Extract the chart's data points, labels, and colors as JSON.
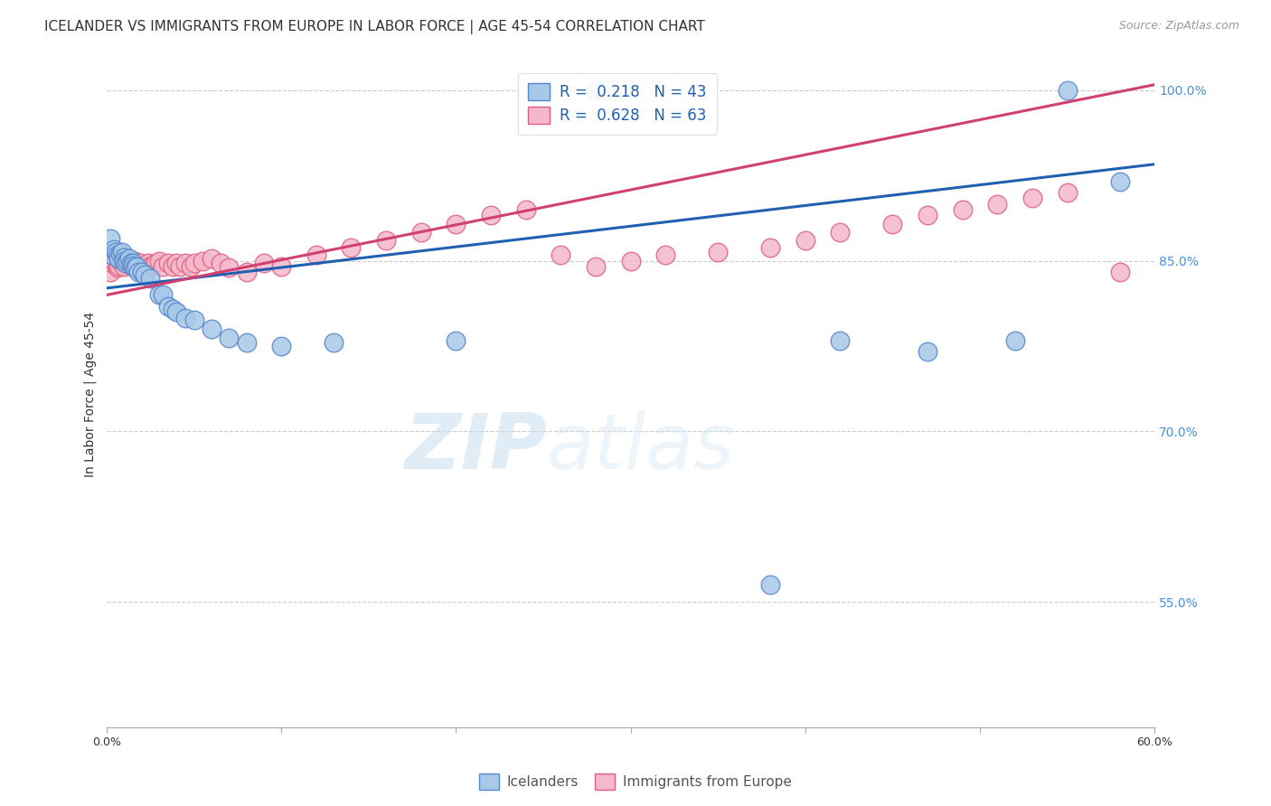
{
  "title": "ICELANDER VS IMMIGRANTS FROM EUROPE IN LABOR FORCE | AGE 45-54 CORRELATION CHART",
  "source": "Source: ZipAtlas.com",
  "ylabel": "In Labor Force | Age 45-54",
  "x_min": 0.0,
  "x_max": 0.6,
  "y_min": 0.44,
  "y_max": 1.025,
  "yticks": [
    0.55,
    0.7,
    0.85,
    1.0
  ],
  "ytick_labels": [
    "55.0%",
    "70.0%",
    "85.0%",
    "100.0%"
  ],
  "xticks": [
    0.0,
    0.1,
    0.2,
    0.3,
    0.4,
    0.5,
    0.6
  ],
  "xtick_labels": [
    "0.0%",
    "",
    "",
    "",
    "",
    "",
    "60.0%"
  ],
  "grid_color": "#cccccc",
  "background_color": "#ffffff",
  "blue_fill": "#a8c8e8",
  "blue_edge": "#5588cc",
  "pink_fill": "#f4b8cc",
  "pink_edge": "#e06080",
  "blue_line_color": "#2060b0",
  "pink_line_color": "#d04070",
  "legend_blue_R": "0.218",
  "legend_blue_N": "43",
  "legend_pink_R": "0.628",
  "legend_pink_N": "63",
  "watermark_zip": "ZIP",
  "watermark_atlas": "atlas",
  "title_fontsize": 11,
  "axis_label_fontsize": 10,
  "tick_fontsize": 9,
  "legend_fontsize": 11,
  "source_fontsize": 9,
  "blue_scatter_x": [
    0.002,
    0.003,
    0.004,
    0.005,
    0.006,
    0.007,
    0.008,
    0.009,
    0.01,
    0.01,
    0.011,
    0.012,
    0.013,
    0.014,
    0.015,
    0.015,
    0.016,
    0.017,
    0.018,
    0.02,
    0.022,
    0.025,
    0.03,
    0.032,
    0.035,
    0.038,
    0.04,
    0.045,
    0.05,
    0.06,
    0.07,
    0.08,
    0.1,
    0.13,
    0.2,
    0.25,
    0.28,
    0.38,
    0.42,
    0.47,
    0.52,
    0.55,
    0.58
  ],
  "blue_scatter_y": [
    0.87,
    0.855,
    0.86,
    0.858,
    0.855,
    0.852,
    0.856,
    0.858,
    0.853,
    0.85,
    0.848,
    0.85,
    0.852,
    0.848,
    0.848,
    0.846,
    0.844,
    0.845,
    0.84,
    0.84,
    0.838,
    0.835,
    0.82,
    0.82,
    0.81,
    0.808,
    0.805,
    0.8,
    0.798,
    0.79,
    0.782,
    0.778,
    0.775,
    0.778,
    0.78,
    1.0,
    1.0,
    0.565,
    0.78,
    0.77,
    0.78,
    1.0,
    0.92
  ],
  "pink_scatter_x": [
    0.002,
    0.003,
    0.004,
    0.005,
    0.006,
    0.007,
    0.008,
    0.009,
    0.01,
    0.01,
    0.011,
    0.012,
    0.013,
    0.014,
    0.015,
    0.016,
    0.017,
    0.018,
    0.019,
    0.02,
    0.022,
    0.024,
    0.025,
    0.026,
    0.028,
    0.03,
    0.032,
    0.035,
    0.038,
    0.04,
    0.042,
    0.045,
    0.048,
    0.05,
    0.055,
    0.06,
    0.065,
    0.07,
    0.08,
    0.09,
    0.1,
    0.12,
    0.14,
    0.16,
    0.18,
    0.2,
    0.22,
    0.24,
    0.26,
    0.28,
    0.3,
    0.32,
    0.35,
    0.38,
    0.4,
    0.42,
    0.45,
    0.47,
    0.49,
    0.51,
    0.53,
    0.55,
    0.58
  ],
  "pink_scatter_y": [
    0.84,
    0.848,
    0.85,
    0.852,
    0.844,
    0.846,
    0.85,
    0.852,
    0.848,
    0.845,
    0.85,
    0.852,
    0.848,
    0.846,
    0.848,
    0.85,
    0.844,
    0.845,
    0.848,
    0.84,
    0.845,
    0.848,
    0.845,
    0.846,
    0.848,
    0.85,
    0.845,
    0.848,
    0.845,
    0.848,
    0.845,
    0.848,
    0.845,
    0.848,
    0.85,
    0.852,
    0.848,
    0.844,
    0.84,
    0.848,
    0.845,
    0.855,
    0.862,
    0.868,
    0.875,
    0.882,
    0.89,
    0.895,
    0.855,
    0.845,
    0.85,
    0.855,
    0.858,
    0.862,
    0.868,
    0.875,
    0.882,
    0.89,
    0.895,
    0.9,
    0.905,
    0.91,
    0.84
  ],
  "blue_line_x0": 0.0,
  "blue_line_y0": 0.826,
  "blue_line_x1": 0.6,
  "blue_line_y1": 0.935,
  "pink_line_x0": 0.0,
  "pink_line_y0": 0.82,
  "pink_line_x1": 0.6,
  "pink_line_y1": 1.005
}
